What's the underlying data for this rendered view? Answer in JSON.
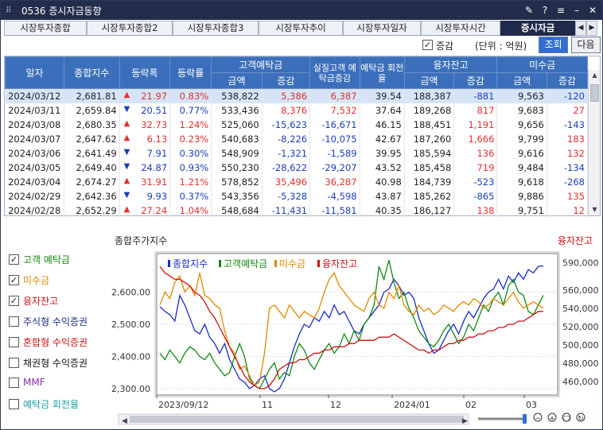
{
  "window": {
    "title": "0536 증시자금동향",
    "controls": [
      "pin",
      "?",
      "≡",
      "–",
      "✕"
    ]
  },
  "tabs": [
    {
      "label": "시장투자종합"
    },
    {
      "label": "시장투자종합2"
    },
    {
      "label": "시장투자종합3"
    },
    {
      "label": "시장투자추이"
    },
    {
      "label": "시장투자일자"
    },
    {
      "label": "시장투자시간"
    },
    {
      "label": "증시자금"
    }
  ],
  "tabnav": {
    "prev": "◀",
    "next": "▶"
  },
  "toolbar": {
    "change_label": "증감",
    "change_checked": "✓",
    "unit": "(단위 : 억원)",
    "query": "조회",
    "next": "다음"
  },
  "table": {
    "headers": {
      "date": "일자",
      "kospi": "종합지수",
      "chg": "등락폭",
      "rate": "등락률",
      "deposit": "고객예탁금",
      "real": "실질고객 예탁금증감",
      "turn": "예탁금 회전율",
      "loan": "융자잔고",
      "unpaid": "미수금",
      "amount": "금액",
      "delta": "증감"
    },
    "rows": [
      {
        "date": "2024/03/12",
        "idx": "2,681.81",
        "dir": "▲",
        "chg": "21.97",
        "rate": "0.83%",
        "dep": "538,822",
        "depd": "5,386",
        "real": "6,387",
        "turn": "39.54",
        "loan": "188,387",
        "loand": "-881",
        "unp": "9,563",
        "unpd": "-120"
      },
      {
        "date": "2024/03/11",
        "idx": "2,659.84",
        "dir": "▼",
        "chg": "20.51",
        "rate": "0.77%",
        "dep": "533,436",
        "depd": "8,376",
        "real": "7,532",
        "turn": "37.64",
        "loan": "189,268",
        "loand": "817",
        "unp": "9,683",
        "unpd": "27"
      },
      {
        "date": "2024/03/08",
        "idx": "2,680.35",
        "dir": "▲",
        "chg": "32.73",
        "rate": "1.24%",
        "dep": "525,060",
        "depd": "-15,623",
        "real": "-16,671",
        "turn": "46.15",
        "loan": "188,451",
        "loand": "1,191",
        "unp": "9,656",
        "unpd": "-143"
      },
      {
        "date": "2024/03/07",
        "idx": "2,647.62",
        "dir": "▲",
        "chg": "6.13",
        "rate": "0.23%",
        "dep": "540,683",
        "depd": "-8,226",
        "real": "-10,075",
        "turn": "42.67",
        "loan": "187,260",
        "loand": "1,666",
        "unp": "9,799",
        "unpd": "183"
      },
      {
        "date": "2024/03/06",
        "idx": "2,641.49",
        "dir": "▼",
        "chg": "7.91",
        "rate": "0.30%",
        "dep": "548,909",
        "depd": "-1,321",
        "real": "-1,589",
        "turn": "39.95",
        "loan": "185,594",
        "loand": "136",
        "unp": "9,616",
        "unpd": "132"
      },
      {
        "date": "2024/03/05",
        "idx": "2,649.40",
        "dir": "▼",
        "chg": "24.87",
        "rate": "0.93%",
        "dep": "550,230",
        "depd": "-28,622",
        "real": "-29,207",
        "turn": "43.52",
        "loan": "185,458",
        "loand": "719",
        "unp": "9,484",
        "unpd": "-134"
      },
      {
        "date": "2024/03/04",
        "idx": "2,674.27",
        "dir": "▲",
        "chg": "31.91",
        "rate": "1.21%",
        "dep": "578,852",
        "depd": "35,496",
        "real": "36,287",
        "turn": "40.98",
        "loan": "184,739",
        "loand": "-523",
        "unp": "9,618",
        "unpd": "-268"
      },
      {
        "date": "2024/02/29",
        "idx": "2,642.36",
        "dir": "▼",
        "chg": "9.93",
        "rate": "0.37%",
        "dep": "543,356",
        "depd": "-5,328",
        "real": "-4,598",
        "turn": "43.87",
        "loan": "185,262",
        "loand": "-865",
        "unp": "9,886",
        "unpd": "135"
      },
      {
        "date": "2024/02/28",
        "idx": "2,652.29",
        "dir": "▲",
        "chg": "27.24",
        "rate": "1.04%",
        "dep": "548,684",
        "depd": "-11,431",
        "real": "-11,581",
        "turn": "40.35",
        "loan": "186,127",
        "loand": "138",
        "unp": "9,751",
        "unpd": "12"
      }
    ]
  },
  "sidebar": [
    {
      "label": "고객 예탁금",
      "checked": true,
      "color": "#118811"
    },
    {
      "label": "미수금",
      "checked": true,
      "color": "#e08a00"
    },
    {
      "label": "융자잔고",
      "checked": true,
      "color": "#cc1111"
    },
    {
      "label": "주식형 수익증권",
      "checked": false,
      "color": "#1a2a88"
    },
    {
      "label": "혼합형 수익증권",
      "checked": false,
      "color": "#cc1111"
    },
    {
      "label": "채권형 수익증권",
      "checked": false,
      "color": "#111111"
    },
    {
      "label": "MMF",
      "checked": false,
      "color": "#8a2aa8"
    },
    {
      "label": "예탁금 회전율",
      "checked": false,
      "color": "#1aa0a8"
    }
  ],
  "chart": {
    "left_title": "종합주가지수",
    "right_title": "융자잔고",
    "legend": [
      "종합지수",
      "고객예탁금",
      "미수금",
      "융자잔고"
    ],
    "colors": [
      "#1a2acc",
      "#118811",
      "#e08a00",
      "#cc1111"
    ],
    "left_ticks": [
      "2,600.00",
      "2,500.00",
      "2,400.00",
      "2,300.00"
    ],
    "right_ticks": [
      "590,000",
      "560,000",
      "540,000",
      "520,000",
      "500,000",
      "480,000",
      "460,000"
    ],
    "x_ticks": [
      "2023/09/12",
      "11",
      "12",
      "2024/01",
      "02",
      "03"
    ]
  },
  "chart_data": {
    "type": "line",
    "left_axis_range": [
      2280,
      2720
    ],
    "right_axis_range": [
      445000,
      600000
    ],
    "series": [
      {
        "name": "종합지수",
        "axis": "left",
        "values": [
          2555,
          2540,
          2530,
          2510,
          2590,
          2560,
          2520,
          2480,
          2470,
          2500,
          2460,
          2440,
          2410,
          2440,
          2390,
          2360,
          2330,
          2320,
          2300,
          2310,
          2330,
          2340,
          2300,
          2290,
          2300,
          2330,
          2380,
          2430,
          2470,
          2500,
          2490,
          2520,
          2510,
          2540,
          2520,
          2560,
          2530,
          2540,
          2510,
          2480,
          2470,
          2500,
          2520,
          2540,
          2560,
          2600,
          2610,
          2640,
          2620,
          2590,
          2600,
          2580,
          2520,
          2480,
          2440,
          2410,
          2420,
          2450,
          2480,
          2500,
          2470,
          2510,
          2540,
          2520,
          2550,
          2580,
          2600,
          2610,
          2640,
          2610,
          2650,
          2630,
          2660,
          2640,
          2670,
          2660,
          2680,
          2682
        ]
      },
      {
        "name": "고객예탁금",
        "axis": "left",
        "values": [
          2410,
          2390,
          2420,
          2400,
          2380,
          2410,
          2430,
          2420,
          2400,
          2390,
          2410,
          2380,
          2360,
          2340,
          2350,
          2400,
          2440,
          2400,
          2330,
          2310,
          2300,
          2330,
          2360,
          2380,
          2330,
          2350,
          2340,
          2400,
          2440,
          2420,
          2380,
          2360,
          2390,
          2420,
          2440,
          2410,
          2430,
          2470,
          2440,
          2480,
          2450,
          2500,
          2520,
          2560,
          2680,
          2640,
          2700,
          2630,
          2580,
          2600,
          2550,
          2520,
          2480,
          2460,
          2440,
          2430,
          2450,
          2480,
          2500,
          2470,
          2440,
          2460,
          2500,
          2480,
          2520,
          2560,
          2540,
          2580,
          2600,
          2560,
          2620,
          2640,
          2600,
          2590,
          2540,
          2530,
          2560,
          2590
        ]
      },
      {
        "name": "미수금",
        "axis": "left",
        "values": [
          2560,
          2600,
          2580,
          2630,
          2650,
          2600,
          2620,
          2590,
          2660,
          2590,
          2580,
          2560,
          2550,
          2480,
          2430,
          2410,
          2360,
          2370,
          2340,
          2310,
          2320,
          2410,
          2550,
          2560,
          2540,
          2520,
          2560,
          2540,
          2520,
          2540,
          2530,
          2520,
          2550,
          2600,
          2640,
          2660,
          2620,
          2600,
          2580,
          2560,
          2550,
          2540,
          2580,
          2600,
          2560,
          2550,
          2600,
          2580,
          2620,
          2560,
          2540,
          2530,
          2560,
          2540,
          2550,
          2530,
          2540,
          2560,
          2550,
          2540,
          2560,
          2570,
          2560,
          2580,
          2570,
          2550,
          2560,
          2580,
          2570,
          2560,
          2580,
          2600,
          2570,
          2550,
          2560,
          2570,
          2560,
          2550
        ]
      },
      {
        "name": "융자잔고",
        "axis": "left",
        "values": [
          2680,
          2660,
          2650,
          2640,
          2640,
          2630,
          2620,
          2600,
          2590,
          2570,
          2540,
          2520,
          2490,
          2460,
          2430,
          2400,
          2370,
          2340,
          2320,
          2310,
          2300,
          2300,
          2310,
          2330,
          2360,
          2370,
          2380,
          2380,
          2390,
          2390,
          2400,
          2410,
          2410,
          2420,
          2420,
          2430,
          2430,
          2430,
          2440,
          2440,
          2450,
          2450,
          2450,
          2450,
          2460,
          2460,
          2460,
          2470,
          2460,
          2450,
          2440,
          2430,
          2420,
          2420,
          2410,
          2420,
          2420,
          2430,
          2440,
          2440,
          2450,
          2450,
          2460,
          2460,
          2470,
          2470,
          2480,
          2480,
          2490,
          2490,
          2500,
          2500,
          2510,
          2510,
          2520,
          2530,
          2540,
          2540
        ]
      }
    ]
  },
  "zoom": {
    "icons": [
      "−",
      "+",
      "□",
      "↻"
    ]
  }
}
